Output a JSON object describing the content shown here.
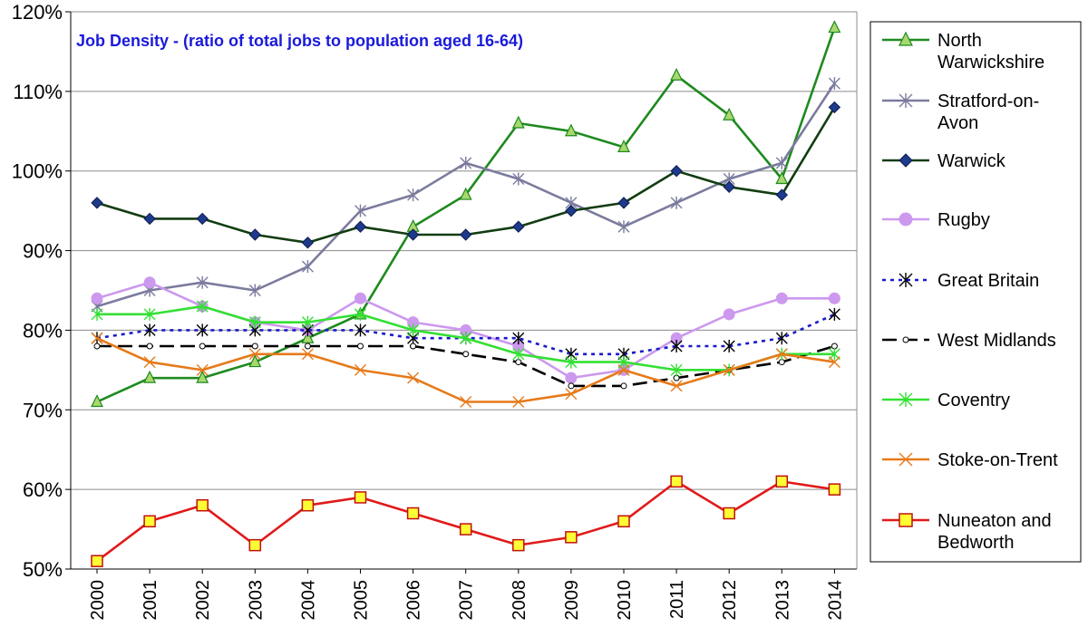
{
  "chart_data": {
    "type": "line",
    "title": "Job Density - (ratio of total jobs to population aged 16-64)",
    "title_color": "#1a1adb",
    "xlabel": "",
    "ylabel": "",
    "ylim": [
      50,
      120
    ],
    "yticks": [
      50,
      60,
      70,
      80,
      90,
      100,
      110,
      120
    ],
    "ytick_labels": [
      "50%",
      "60%",
      "70%",
      "80%",
      "90%",
      "100%",
      "110%",
      "120%"
    ],
    "grid": true,
    "legend_position": "right",
    "categories": [
      "2000",
      "2001",
      "2002",
      "2003",
      "2004",
      "2005",
      "2006",
      "2007",
      "2008",
      "2009",
      "2010",
      "2011",
      "2012",
      "2013",
      "2014"
    ],
    "series": [
      {
        "name": "North Warwickshire",
        "legend_lines": [
          "North",
          "Warwickshire"
        ],
        "color": "#1e8a1e",
        "marker": "triangle",
        "marker_fill": "#a9d86e",
        "dash": "solid",
        "values": [
          71,
          74,
          74,
          76,
          79,
          82,
          93,
          97,
          106,
          105,
          103,
          112,
          107,
          99,
          118
        ]
      },
      {
        "name": "Stratford-on-Avon",
        "legend_lines": [
          "Stratford-on-",
          "Avon"
        ],
        "color": "#7b7b9e",
        "marker": "asterisk",
        "marker_fill": "#7b7b9e",
        "dash": "solid",
        "values": [
          83,
          85,
          86,
          85,
          88,
          95,
          97,
          101,
          99,
          96,
          93,
          96,
          99,
          101,
          111
        ]
      },
      {
        "name": "Warwick",
        "legend_lines": [
          "Warwick"
        ],
        "color": "#123d12",
        "marker": "diamond",
        "marker_fill": "#1f3a8a",
        "dash": "solid",
        "values": [
          96,
          94,
          94,
          92,
          91,
          93,
          92,
          92,
          93,
          95,
          96,
          100,
          98,
          97,
          108
        ]
      },
      {
        "name": "Rugby",
        "legend_lines": [
          "Rugby"
        ],
        "color": "#cc99ee",
        "marker": "circle",
        "marker_fill": "#cc99ee",
        "dash": "solid",
        "values": [
          84,
          86,
          83,
          81,
          80,
          84,
          81,
          80,
          78,
          74,
          75,
          79,
          82,
          84,
          84
        ]
      },
      {
        "name": "Great Britain",
        "legend_lines": [
          "Great Britain"
        ],
        "color": "#1a1acc",
        "marker": "asterisk",
        "marker_fill": "#000000",
        "dash": "dotted",
        "values": [
          79,
          80,
          80,
          80,
          80,
          80,
          79,
          79,
          79,
          77,
          77,
          78,
          78,
          79,
          82
        ]
      },
      {
        "name": "West Midlands",
        "legend_lines": [
          "West Midlands"
        ],
        "color": "#000000",
        "marker": "smallcircle",
        "marker_fill": "#ffffff",
        "dash": "dashed",
        "values": [
          78,
          78,
          78,
          78,
          78,
          78,
          78,
          77,
          76,
          73,
          73,
          74,
          75,
          76,
          78
        ]
      },
      {
        "name": "Coventry",
        "legend_lines": [
          "Coventry"
        ],
        "color": "#33e033",
        "marker": "asterisk",
        "marker_fill": "#33e033",
        "dash": "solid",
        "values": [
          82,
          82,
          83,
          81,
          81,
          82,
          80,
          79,
          77,
          76,
          76,
          75,
          75,
          77,
          77
        ]
      },
      {
        "name": "Stoke-on-Trent",
        "legend_lines": [
          "Stoke-on-Trent"
        ],
        "color": "#e67a1a",
        "marker": "cross",
        "marker_fill": "#e67a1a",
        "dash": "solid",
        "values": [
          79,
          76,
          75,
          77,
          77,
          75,
          74,
          71,
          71,
          72,
          75,
          73,
          75,
          77,
          76
        ]
      },
      {
        "name": "Nuneaton and Bedworth",
        "legend_lines": [
          "Nuneaton and",
          "Bedworth"
        ],
        "color": "#e01a1a",
        "marker": "square",
        "marker_fill": "#ffff33",
        "dash": "solid",
        "values": [
          51,
          56,
          58,
          53,
          58,
          59,
          57,
          55,
          53,
          54,
          56,
          61,
          57,
          61,
          60
        ]
      }
    ]
  }
}
